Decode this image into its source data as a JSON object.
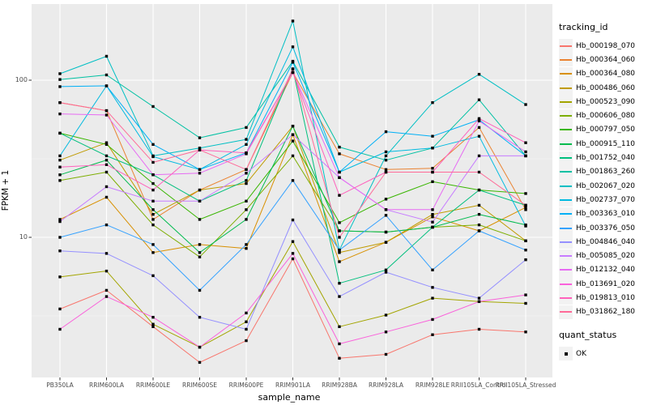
{
  "figure": {
    "background": "#FFFFFF",
    "panel_background": "#EBEBEB",
    "grid_major_color": "#FFFFFF",
    "grid_minor_color": "#F5F5F5",
    "axis_text_color": "#4D4D4D",
    "tick_mark_color": "#333333",
    "point_color": "#000000"
  },
  "legend": {
    "tracking_title": "tracking_id",
    "quant_title": "quant_status",
    "quant_value": "OK",
    "key_background": "#F2F2F2"
  },
  "chart_data": {
    "type": "line",
    "title": "",
    "xlabel": "sample_name",
    "ylabel": "FPKM + 1",
    "y_scale": "log10",
    "yticks": [
      100,
      10
    ],
    "y_minor_gridlines": [
      31.623,
      3.1623
    ],
    "ylim": [
      1.28,
      305
    ],
    "legend_position": "right",
    "grid": "on",
    "point_shape": "filled-square",
    "categories": [
      "PB350LA",
      "RRIM600LA",
      "RRIM600LE",
      "RRIM600SE",
      "RRIM600PE",
      "RRIM901LA",
      "RRIM928BA",
      "RRIM928LA",
      "RRIM928LE",
      "RRII105LA_Control",
      "RRII105LA_Stressed"
    ],
    "series": [
      {
        "name": "Hb_000198_070",
        "color": "#F8766D",
        "values": [
          3.5,
          4.6,
          2.7,
          1.6,
          2.2,
          7.3,
          1.7,
          1.8,
          2.4,
          2.6,
          2.5
        ]
      },
      {
        "name": "Hb_000364_060",
        "color": "#EA8331",
        "values": [
          72,
          64,
          13,
          20,
          27,
          112,
          34,
          27,
          27.5,
          50,
          15
        ]
      },
      {
        "name": "Hb_000364_080",
        "color": "#D89000",
        "values": [
          13,
          18,
          8,
          9,
          8.5,
          45,
          7,
          9.3,
          13.5,
          11,
          15.5
        ]
      },
      {
        "name": "Hb_000486_060",
        "color": "#C09B00",
        "values": [
          31,
          40,
          14,
          20,
          22,
          51,
          8,
          9.3,
          14,
          16,
          9.5
        ]
      },
      {
        "name": "Hb_000523_090",
        "color": "#A3A500",
        "values": [
          5.6,
          6.1,
          2.8,
          2.0,
          2.9,
          9.4,
          2.7,
          3.2,
          4.1,
          3.9,
          3.8
        ]
      },
      {
        "name": "Hb_000606_080",
        "color": "#7CAE00",
        "values": [
          23,
          26,
          12,
          7.5,
          15,
          33,
          11,
          10.8,
          11.6,
          12,
          9.5
        ]
      },
      {
        "name": "Hb_000797_050",
        "color": "#39B600",
        "values": [
          46,
          39,
          22,
          13,
          17,
          41,
          12.4,
          17.5,
          22.6,
          20,
          19
        ]
      },
      {
        "name": "Hb_000915_110",
        "color": "#00BB4E",
        "values": [
          25,
          31,
          15,
          8,
          13,
          51,
          11,
          10.8,
          11.6,
          14,
          12
        ]
      },
      {
        "name": "Hb_001752_040",
        "color": "#00BF7D",
        "values": [
          46,
          33,
          25,
          17,
          23,
          118,
          5.1,
          6.2,
          11.6,
          20,
          16
        ]
      },
      {
        "name": "Hb_001863_260",
        "color": "#00C1A3",
        "values": [
          101,
          108,
          68,
          43,
          50,
          132,
          37.5,
          31,
          37,
          75,
          33
        ]
      },
      {
        "name": "Hb_002067_020",
        "color": "#00BFC4",
        "values": [
          110,
          142,
          33,
          37,
          42,
          238,
          8.3,
          33,
          72,
          109,
          70
        ]
      },
      {
        "name": "Hb_002737_070",
        "color": "#00BAE0",
        "values": [
          33,
          92,
          32.6,
          27,
          39,
          163,
          26,
          35,
          37,
          44,
          11.8
        ]
      },
      {
        "name": "Hb_003363_010",
        "color": "#00B0F6",
        "values": [
          91,
          92,
          39,
          27,
          34.5,
          130,
          26,
          47,
          44,
          56,
          33
        ]
      },
      {
        "name": "Hb_003376_050",
        "color": "#35A2FF",
        "values": [
          10,
          12,
          9,
          4.6,
          9,
          23,
          8.3,
          13.8,
          6.2,
          11,
          8.3
        ]
      },
      {
        "name": "Hb_004846_040",
        "color": "#9590FF",
        "values": [
          8.2,
          7.9,
          5.7,
          3.1,
          2.6,
          12.9,
          4.2,
          6.0,
          4.8,
          4.1,
          7.2
        ]
      },
      {
        "name": "Hb_005085_020",
        "color": "#C77CFF",
        "values": [
          12.6,
          21,
          17,
          17,
          25.6,
          45,
          24,
          15,
          12.5,
          33,
          33
        ]
      },
      {
        "name": "Hb_012132_040",
        "color": "#E76BF3",
        "values": [
          61,
          60,
          25,
          25.6,
          34,
          112,
          24,
          15,
          15,
          55,
          35
        ]
      },
      {
        "name": "Hb_013691_020",
        "color": "#FA62DB",
        "values": [
          2.6,
          4.2,
          3.1,
          2.0,
          3.3,
          7.9,
          2.1,
          2.5,
          3.0,
          3.9,
          4.3
        ]
      },
      {
        "name": "Hb_019813_010",
        "color": "#FF62BC",
        "values": [
          28,
          29,
          20,
          36,
          34.5,
          112,
          18.5,
          26,
          26,
          57,
          40
        ]
      },
      {
        "name": "Hb_031862_180",
        "color": "#FF6A98",
        "values": [
          72,
          64,
          30,
          36,
          27,
          118,
          10,
          26,
          26,
          26,
          16
        ]
      }
    ]
  }
}
